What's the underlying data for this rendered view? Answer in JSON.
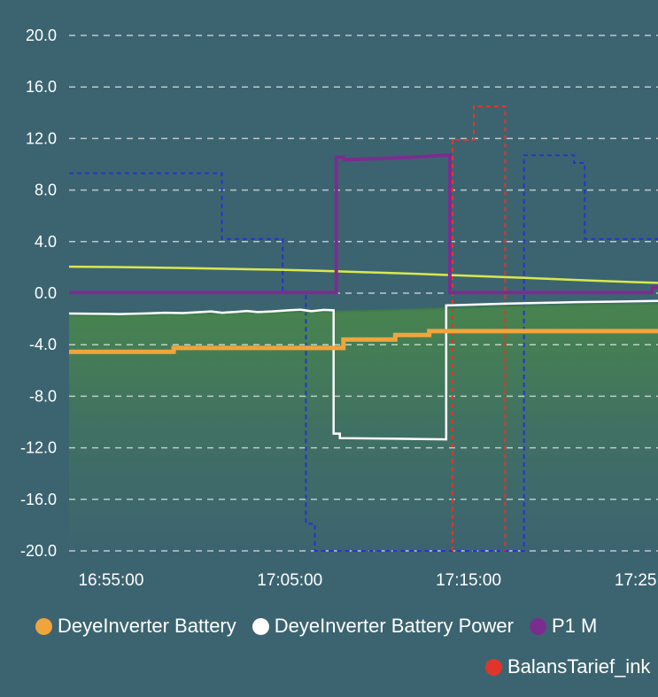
{
  "theme": {
    "background": "#3c6470",
    "text_color": "#ffffff",
    "grid_color": "rgba(255,255,255,0.65)"
  },
  "legend": {
    "row1": [
      {
        "label": "DeyeInverter Battery",
        "color": "#f0a43c"
      },
      {
        "label": "DeyeInverter Battery Power",
        "color": "#ffffff"
      },
      {
        "label": "P1 M",
        "color": "#7b2d8f"
      }
    ],
    "row2": [
      {
        "label": "BalansTarief_ink",
        "color": "#e0352b"
      }
    ]
  },
  "chart_data": {
    "type": "line",
    "title": "",
    "legend_position": "bottom",
    "grid": {
      "horizontal": true,
      "vertical": false,
      "style": "dashed",
      "color": "rgba(255,255,255,0.65)"
    },
    "x_axis": {
      "unit": "time",
      "range_minutes_after_16_50": [
        2.65,
        35.6
      ],
      "ticks": [
        {
          "t": 5,
          "label": "16:55:00"
        },
        {
          "t": 15,
          "label": "17:05:00"
        },
        {
          "t": 25,
          "label": "17:15:00"
        },
        {
          "t": 35,
          "label": "17:25:00"
        }
      ]
    },
    "y_axis": {
      "range": [
        -20,
        20
      ],
      "ticks": [
        {
          "v": 20,
          "label": "20.0"
        },
        {
          "v": 16,
          "label": "16.0"
        },
        {
          "v": 12,
          "label": "12.0"
        },
        {
          "v": 8,
          "label": "8.0"
        },
        {
          "v": 4,
          "label": "4.0"
        },
        {
          "v": 0,
          "label": "0.0"
        },
        {
          "v": -4,
          "label": "-4.0"
        },
        {
          "v": -8,
          "label": "-8.0"
        },
        {
          "v": -12,
          "label": "-12.0"
        },
        {
          "v": -16,
          "label": "-16.0"
        },
        {
          "v": -20,
          "label": "-20.0"
        }
      ]
    },
    "series": [
      {
        "name": "unlabeled-blue-dashed",
        "color": "#2633d0",
        "width": 2,
        "dash": [
          5,
          4
        ],
        "points": [
          [
            2.65,
            9.3
          ],
          [
            11.2,
            9.3
          ],
          [
            11.2,
            4.2
          ],
          [
            14.6,
            4.2
          ],
          [
            14.6,
            0.1
          ],
          [
            15.9,
            0.1
          ],
          [
            15.9,
            -17.9
          ],
          [
            16.4,
            -17.9
          ],
          [
            16.4,
            -20
          ],
          [
            28.1,
            -20
          ],
          [
            28.1,
            10.7
          ],
          [
            30.9,
            10.7
          ],
          [
            30.9,
            10.1
          ],
          [
            31.5,
            10.1
          ],
          [
            31.5,
            4.2
          ],
          [
            35.6,
            4.2
          ]
        ]
      },
      {
        "name": "BalansTarief_ink",
        "color": "#e0352b",
        "width": 2,
        "dash": [
          5,
          4
        ],
        "points": [
          [
            24.1,
            -20
          ],
          [
            24.1,
            11.9
          ],
          [
            25.3,
            11.9
          ],
          [
            25.3,
            14.5
          ],
          [
            27.05,
            14.5
          ],
          [
            27.05,
            -20
          ]
        ]
      },
      {
        "name": "unlabeled-lime",
        "color": "#d9e84f",
        "width": 2.5,
        "dash": null,
        "points": [
          [
            2.65,
            2.05
          ],
          [
            5,
            2.03
          ],
          [
            7,
            1.99
          ],
          [
            9,
            1.95
          ],
          [
            11,
            1.9
          ],
          [
            13,
            1.85
          ],
          [
            14.5,
            1.81
          ],
          [
            16,
            1.76
          ],
          [
            17.5,
            1.7
          ],
          [
            19,
            1.63
          ],
          [
            20.5,
            1.57
          ],
          [
            22,
            1.5
          ],
          [
            24,
            1.4
          ],
          [
            26,
            1.3
          ],
          [
            28,
            1.19
          ],
          [
            30,
            1.08
          ],
          [
            32,
            0.97
          ],
          [
            34,
            0.87
          ],
          [
            35.6,
            0.8
          ]
        ]
      },
      {
        "name": "unlabeled-green-area",
        "color": "#3f7d48",
        "width": 2,
        "dash": null,
        "fill": true,
        "fill_gradient": {
          "stops": [
            {
              "offset": 0,
              "color": "rgba(72,134,76,0.9)"
            },
            {
              "offset": 0.5,
              "color": "rgba(72,134,76,0.35)"
            },
            {
              "offset": 1,
              "color": "rgba(72,134,76,0)"
            }
          ]
        },
        "points": [
          [
            2.65,
            -1.76
          ],
          [
            4,
            -1.75
          ],
          [
            6,
            -1.72
          ],
          [
            8,
            -1.68
          ],
          [
            10,
            -1.62
          ],
          [
            12,
            -1.56
          ],
          [
            14,
            -1.5
          ],
          [
            16,
            -1.46
          ],
          [
            18,
            -1.42
          ],
          [
            20,
            -1.36
          ],
          [
            22,
            -1.28
          ],
          [
            24,
            -1.18
          ],
          [
            26,
            -1.08
          ],
          [
            28,
            -1.0
          ],
          [
            30,
            -0.94
          ],
          [
            32,
            -0.89
          ],
          [
            34,
            -0.84
          ],
          [
            35.6,
            -0.8
          ]
        ]
      },
      {
        "name": "DeyeInverter Battery Power",
        "color": "#ffffff",
        "width": 2.5,
        "dash": null,
        "points": [
          [
            2.65,
            -1.58
          ],
          [
            4,
            -1.6
          ],
          [
            5.5,
            -1.62
          ],
          [
            7,
            -1.57
          ],
          [
            8,
            -1.52
          ],
          [
            9,
            -1.55
          ],
          [
            10,
            -1.47
          ],
          [
            10.6,
            -1.42
          ],
          [
            11.2,
            -1.52
          ],
          [
            12,
            -1.45
          ],
          [
            12.6,
            -1.38
          ],
          [
            13.2,
            -1.47
          ],
          [
            14,
            -1.42
          ],
          [
            15,
            -1.32
          ],
          [
            15.6,
            -1.28
          ],
          [
            16.2,
            -1.4
          ],
          [
            16.9,
            -1.3
          ],
          [
            17.45,
            -1.33
          ],
          [
            17.45,
            -10.9
          ],
          [
            17.8,
            -10.9
          ],
          [
            17.8,
            -11.25
          ],
          [
            21,
            -11.3
          ],
          [
            23.75,
            -11.35
          ],
          [
            23.75,
            -0.95
          ],
          [
            25,
            -0.9
          ],
          [
            27,
            -0.82
          ],
          [
            29,
            -0.76
          ],
          [
            31,
            -0.7
          ],
          [
            33,
            -0.66
          ],
          [
            35.6,
            -0.6
          ]
        ]
      },
      {
        "name": "DeyeInverter Battery",
        "color": "#f0a43c",
        "width": 5,
        "dash": null,
        "points": [
          [
            2.65,
            -4.55
          ],
          [
            8.5,
            -4.55
          ],
          [
            8.5,
            -4.25
          ],
          [
            18.0,
            -4.25
          ],
          [
            18.0,
            -3.6
          ],
          [
            20.9,
            -3.6
          ],
          [
            20.9,
            -3.25
          ],
          [
            22.8,
            -3.25
          ],
          [
            22.8,
            -2.95
          ],
          [
            35.6,
            -2.95
          ]
        ]
      },
      {
        "name": "P1 M",
        "color": "#7b2d8f",
        "width": 4,
        "dash": null,
        "points": [
          [
            2.65,
            0.05
          ],
          [
            17.6,
            0.05
          ],
          [
            17.6,
            10.55
          ],
          [
            18.0,
            10.55
          ],
          [
            18.05,
            10.35
          ],
          [
            19.5,
            10.42
          ],
          [
            21,
            10.5
          ],
          [
            22.5,
            10.6
          ],
          [
            23.95,
            10.72
          ],
          [
            23.95,
            0.05
          ],
          [
            35.25,
            0.05
          ],
          [
            35.3,
            0.45
          ],
          [
            35.6,
            0.45
          ]
        ]
      }
    ]
  }
}
